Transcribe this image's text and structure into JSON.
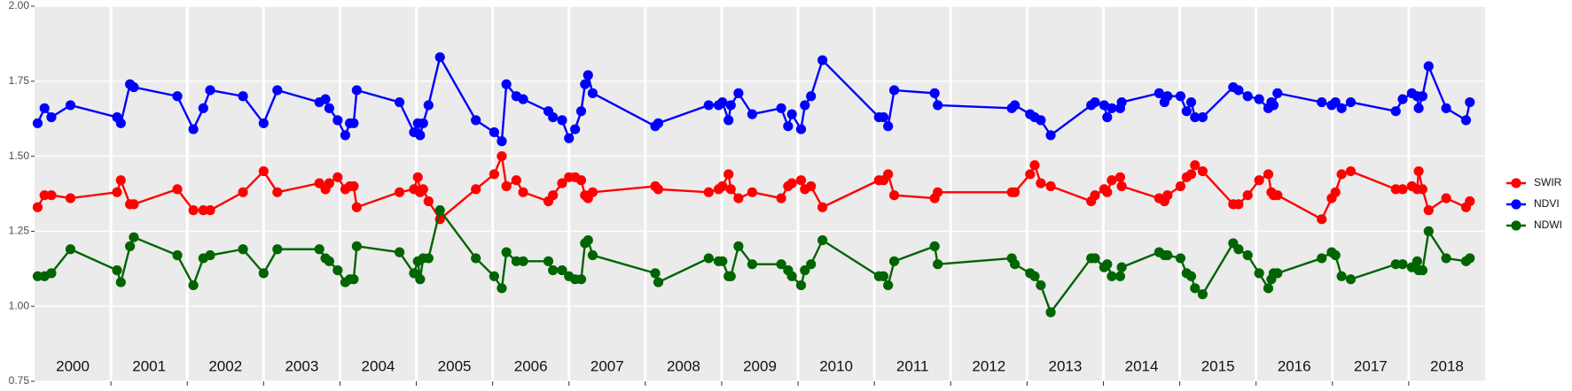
{
  "chart_data": {
    "type": "line",
    "x": [
      2000.04,
      2000.13,
      2000.22,
      2000.47,
      2001.08,
      2001.13,
      2001.25,
      2001.3,
      2001.87,
      2002.08,
      2002.21,
      2002.3,
      2002.73,
      2003.0,
      2003.18,
      2003.73,
      2003.81,
      2003.86,
      2003.97,
      2004.07,
      2004.13,
      2004.18,
      2004.22,
      2004.78,
      2004.97,
      2005.02,
      2005.05,
      2005.09,
      2005.16,
      2005.31,
      2005.78,
      2006.02,
      2006.12,
      2006.18,
      2006.31,
      2006.4,
      2006.73,
      2006.79,
      2006.91,
      2007.0,
      2007.08,
      2007.16,
      2007.21,
      2007.25,
      2007.31,
      2008.13,
      2008.17,
      2008.83,
      2008.96,
      2009.01,
      2009.09,
      2009.12,
      2009.22,
      2009.4,
      2009.78,
      2009.87,
      2009.92,
      2010.04,
      2010.09,
      2010.17,
      2010.32,
      2011.06,
      2011.12,
      2011.18,
      2011.26,
      2011.79,
      2011.83,
      2012.8,
      2012.84,
      2013.04,
      2013.1,
      2013.18,
      2013.31,
      2013.84,
      2013.89,
      2014.01,
      2014.05,
      2014.11,
      2014.22,
      2014.24,
      2014.73,
      2014.8,
      2014.84,
      2015.01,
      2015.09,
      2015.15,
      2015.2,
      2015.3,
      2015.7,
      2015.77,
      2015.89,
      2016.04,
      2016.16,
      2016.2,
      2016.23,
      2016.28,
      2016.86,
      2016.99,
      2017.04,
      2017.12,
      2017.24,
      2017.83,
      2017.92,
      2018.04,
      2018.11,
      2018.13,
      2018.18,
      2018.26,
      2018.49,
      2018.75,
      2018.8
    ],
    "series": [
      {
        "name": "SWIR",
        "color": "#ff0000",
        "values": [
          1.33,
          1.37,
          1.37,
          1.36,
          1.38,
          1.42,
          1.34,
          1.34,
          1.39,
          1.32,
          1.32,
          1.32,
          1.38,
          1.45,
          1.38,
          1.41,
          1.39,
          1.41,
          1.43,
          1.39,
          1.4,
          1.4,
          1.33,
          1.38,
          1.39,
          1.43,
          1.38,
          1.39,
          1.35,
          1.29,
          1.39,
          1.44,
          1.5,
          1.4,
          1.42,
          1.38,
          1.35,
          1.37,
          1.41,
          1.43,
          1.43,
          1.42,
          1.37,
          1.36,
          1.38,
          1.4,
          1.39,
          1.38,
          1.39,
          1.4,
          1.44,
          1.39,
          1.36,
          1.38,
          1.36,
          1.4,
          1.41,
          1.42,
          1.39,
          1.4,
          1.33,
          1.42,
          1.42,
          1.44,
          1.37,
          1.36,
          1.38,
          1.38,
          1.38,
          1.44,
          1.47,
          1.41,
          1.4,
          1.35,
          1.37,
          1.39,
          1.38,
          1.42,
          1.43,
          1.4,
          1.36,
          1.35,
          1.37,
          1.4,
          1.43,
          1.44,
          1.47,
          1.45,
          1.34,
          1.34,
          1.37,
          1.42,
          1.44,
          1.38,
          1.37,
          1.37,
          1.29,
          1.36,
          1.38,
          1.44,
          1.45,
          1.39,
          1.39,
          1.4,
          1.39,
          1.45,
          1.39,
          1.32,
          1.36,
          1.33,
          1.35
        ]
      },
      {
        "name": "NDVI",
        "color": "#0000ff",
        "values": [
          1.61,
          1.66,
          1.63,
          1.67,
          1.63,
          1.61,
          1.74,
          1.73,
          1.7,
          1.59,
          1.66,
          1.72,
          1.7,
          1.61,
          1.72,
          1.68,
          1.69,
          1.66,
          1.62,
          1.57,
          1.61,
          1.61,
          1.72,
          1.68,
          1.58,
          1.61,
          1.57,
          1.61,
          1.67,
          1.83,
          1.62,
          1.58,
          1.55,
          1.74,
          1.7,
          1.69,
          1.65,
          1.63,
          1.62,
          1.56,
          1.59,
          1.65,
          1.74,
          1.77,
          1.71,
          1.6,
          1.61,
          1.67,
          1.67,
          1.68,
          1.62,
          1.67,
          1.71,
          1.64,
          1.66,
          1.6,
          1.64,
          1.59,
          1.67,
          1.7,
          1.82,
          1.63,
          1.63,
          1.6,
          1.72,
          1.71,
          1.67,
          1.66,
          1.67,
          1.64,
          1.63,
          1.62,
          1.57,
          1.67,
          1.68,
          1.67,
          1.63,
          1.66,
          1.66,
          1.68,
          1.71,
          1.68,
          1.7,
          1.7,
          1.65,
          1.68,
          1.63,
          1.63,
          1.73,
          1.72,
          1.7,
          1.69,
          1.66,
          1.68,
          1.67,
          1.71,
          1.68,
          1.67,
          1.68,
          1.66,
          1.68,
          1.65,
          1.69,
          1.71,
          1.7,
          1.66,
          1.7,
          1.8,
          1.66,
          1.62,
          1.68
        ]
      },
      {
        "name": "NDWI",
        "color": "#006400",
        "values": [
          1.1,
          1.1,
          1.11,
          1.19,
          1.12,
          1.08,
          1.2,
          1.23,
          1.17,
          1.07,
          1.16,
          1.17,
          1.19,
          1.11,
          1.19,
          1.19,
          1.16,
          1.15,
          1.12,
          1.08,
          1.09,
          1.09,
          1.2,
          1.18,
          1.11,
          1.15,
          1.09,
          1.16,
          1.16,
          1.32,
          1.16,
          1.1,
          1.06,
          1.18,
          1.15,
          1.15,
          1.15,
          1.12,
          1.12,
          1.1,
          1.09,
          1.09,
          1.21,
          1.22,
          1.17,
          1.11,
          1.08,
          1.16,
          1.15,
          1.15,
          1.1,
          1.1,
          1.2,
          1.14,
          1.14,
          1.12,
          1.1,
          1.07,
          1.12,
          1.14,
          1.22,
          1.1,
          1.1,
          1.07,
          1.15,
          1.2,
          1.14,
          1.16,
          1.14,
          1.11,
          1.1,
          1.07,
          0.98,
          1.16,
          1.16,
          1.13,
          1.14,
          1.1,
          1.1,
          1.13,
          1.18,
          1.17,
          1.17,
          1.16,
          1.11,
          1.1,
          1.06,
          1.04,
          1.21,
          1.19,
          1.17,
          1.11,
          1.06,
          1.09,
          1.11,
          1.11,
          1.16,
          1.18,
          1.17,
          1.1,
          1.09,
          1.14,
          1.14,
          1.13,
          1.15,
          1.12,
          1.12,
          1.25,
          1.16,
          1.15,
          1.16
        ]
      }
    ],
    "xlim": [
      2000,
      2019
    ],
    "year_boundaries": [
      2001,
      2002,
      2003,
      2004,
      2005,
      2006,
      2007,
      2008,
      2009,
      2010,
      2011,
      2012,
      2013,
      2014,
      2015,
      2016,
      2017,
      2018
    ],
    "year_labels": [
      "2000",
      "2001",
      "2002",
      "2003",
      "2004",
      "2005",
      "2006",
      "2007",
      "2008",
      "2009",
      "2010",
      "2011",
      "2012",
      "2013",
      "2014",
      "2015",
      "2016",
      "2017",
      "2018"
    ],
    "ylim": [
      0.75,
      2.0
    ],
    "yticks": [
      {
        "value": 0.75,
        "label": "0.75"
      },
      {
        "value": 1.0,
        "label": "1.00"
      },
      {
        "value": 1.25,
        "label": "1.25"
      },
      {
        "value": 1.5,
        "label": "1.50"
      },
      {
        "value": 1.75,
        "label": "1.75"
      },
      {
        "value": 2.0,
        "label": "2.00"
      }
    ],
    "grid": true,
    "legend": "right"
  }
}
